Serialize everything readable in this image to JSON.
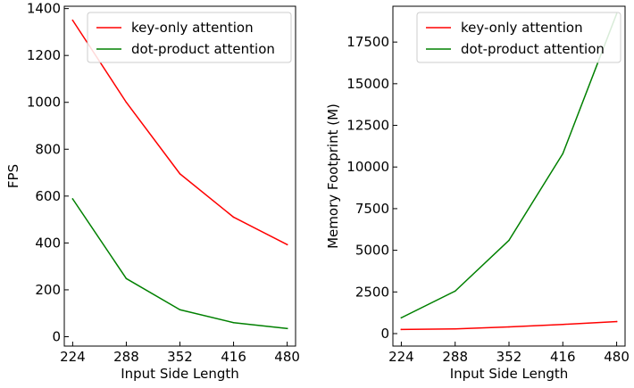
{
  "chart_data": [
    {
      "type": "line",
      "title": "",
      "xlabel": "Input Side Length",
      "ylabel": "FPS",
      "x": [
        224,
        288,
        352,
        416,
        480
      ],
      "xticks": [
        "224",
        "288",
        "352",
        "416",
        "480"
      ],
      "xlim": [
        214,
        490
      ],
      "ylim": [
        -40,
        1410
      ],
      "yticks": [
        "0",
        "200",
        "400",
        "600",
        "800",
        "1000",
        "1200",
        "1400"
      ],
      "ytick_values": [
        0,
        200,
        400,
        600,
        800,
        1000,
        1200,
        1400
      ],
      "legend_position": "top-right",
      "grid": false,
      "series": [
        {
          "name": "key-only attention",
          "color": "#ff0000",
          "values": [
            1350,
            1000,
            695,
            510,
            393
          ]
        },
        {
          "name": "dot-product attention",
          "color": "#008000",
          "values": [
            588,
            248,
            115,
            60,
            35
          ]
        }
      ]
    },
    {
      "type": "line",
      "title": "",
      "xlabel": "Input Side Length",
      "ylabel": "Memory Footprint (M)",
      "x": [
        224,
        288,
        352,
        416,
        480
      ],
      "xticks": [
        "224",
        "288",
        "352",
        "416",
        "480"
      ],
      "xlim": [
        214,
        490
      ],
      "ylim": [
        -750,
        19650
      ],
      "yticks": [
        "0",
        "2500",
        "5000",
        "7500",
        "10000",
        "12500",
        "15000",
        "17500"
      ],
      "ytick_values": [
        0,
        2500,
        5000,
        7500,
        10000,
        12500,
        15000,
        17500
      ],
      "legend_position": "top-right",
      "grid": false,
      "series": [
        {
          "name": "key-only attention",
          "color": "#ff0000",
          "values": [
            250,
            280,
            400,
            550,
            720
          ]
        },
        {
          "name": "dot-product attention",
          "color": "#008000",
          "values": [
            950,
            2550,
            5600,
            10800,
            19200
          ]
        }
      ]
    }
  ]
}
